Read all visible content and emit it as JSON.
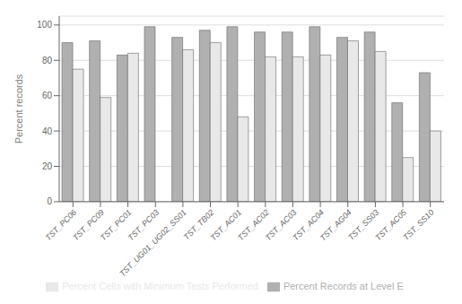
{
  "chart_data": {
    "type": "bar",
    "categories": [
      "TST_PC06",
      "TST_PC09",
      "TST_PC01",
      "TST_PC03",
      "TST_UG01_UG02_SS01",
      "TST_TB02",
      "TST_AC01",
      "TST_AC02",
      "TST_AC03",
      "TST_AC04",
      "TST_AG04",
      "TST_SS03",
      "TST_AC05",
      "TST_SS10"
    ],
    "series": [
      {
        "name": "Percent Records at Level E",
        "color": "#b0b0b0",
        "values": [
          90,
          91,
          83,
          99,
          93,
          97,
          99,
          96,
          96,
          99,
          93,
          96,
          56,
          73
        ]
      },
      {
        "name": "Percent Cells with Minimum Tests Performed",
        "color": "#e8e8e8",
        "values": [
          75,
          59,
          84,
          0,
          86,
          90,
          48,
          82,
          82,
          83,
          91,
          85,
          25,
          40
        ]
      }
    ],
    "ylabel": "Percent records",
    "ylim": [
      0,
      105
    ],
    "yticks": [
      0,
      20,
      40,
      60,
      80,
      100
    ],
    "grid": true,
    "legend": "bottom"
  }
}
